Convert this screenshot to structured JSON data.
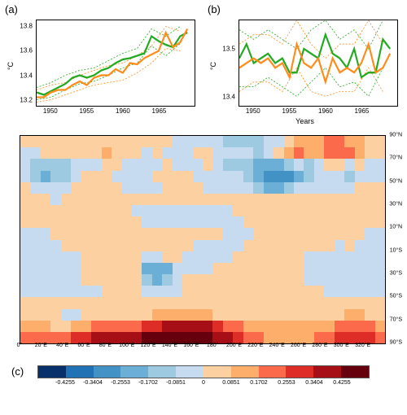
{
  "panel_a": {
    "label": "(a)",
    "ylabel": "°C",
    "ylim": [
      13.15,
      13.85
    ],
    "yticks": [
      13.2,
      13.4,
      13.6,
      13.8
    ],
    "xlim": [
      1948,
      1970
    ],
    "xticks": [
      1950,
      1955,
      1960,
      1965
    ],
    "series_green": {
      "color": "#22aa22",
      "width": 2.5,
      "x": [
        1948,
        1949,
        1950,
        1951,
        1952,
        1953,
        1954,
        1955,
        1956,
        1957,
        1958,
        1959,
        1960,
        1961,
        1962,
        1963,
        1964,
        1965,
        1966,
        1967,
        1968,
        1969
      ],
      "y": [
        13.26,
        13.24,
        13.27,
        13.3,
        13.33,
        13.38,
        13.4,
        13.38,
        13.4,
        13.44,
        13.46,
        13.5,
        13.53,
        13.54,
        13.56,
        13.58,
        13.72,
        13.68,
        13.65,
        13.63,
        13.72,
        13.75
      ]
    },
    "series_orange": {
      "color": "#ff8c1a",
      "width": 2.5,
      "x": [
        1948,
        1949,
        1950,
        1951,
        1952,
        1953,
        1954,
        1955,
        1956,
        1957,
        1958,
        1959,
        1960,
        1961,
        1962,
        1963,
        1964,
        1965,
        1966,
        1967,
        1968,
        1969
      ],
      "y": [
        13.22,
        13.22,
        13.26,
        13.28,
        13.28,
        13.32,
        13.35,
        13.32,
        13.38,
        13.4,
        13.4,
        13.45,
        13.42,
        13.5,
        13.49,
        13.54,
        13.57,
        13.6,
        13.75,
        13.63,
        13.67,
        13.78
      ]
    },
    "dotted": [
      {
        "color": "#ff8c1a",
        "x": [
          1948,
          1950,
          1952,
          1954,
          1956,
          1958,
          1960,
          1962,
          1964,
          1966,
          1968
        ],
        "y": [
          13.18,
          13.2,
          13.24,
          13.28,
          13.32,
          13.34,
          13.36,
          13.42,
          13.5,
          13.62,
          13.6
        ]
      },
      {
        "color": "#ff8c1a",
        "x": [
          1948,
          1950,
          1952,
          1954,
          1956,
          1958,
          1960,
          1962,
          1964,
          1966,
          1968
        ],
        "y": [
          13.28,
          13.32,
          13.34,
          13.4,
          13.44,
          13.48,
          13.5,
          13.56,
          13.64,
          13.8,
          13.76
        ]
      },
      {
        "color": "#22aa22",
        "x": [
          1948,
          1950,
          1952,
          1954,
          1956,
          1958,
          1960,
          1962,
          1964,
          1966,
          1968
        ],
        "y": [
          13.2,
          13.22,
          13.28,
          13.33,
          13.35,
          13.4,
          13.46,
          13.5,
          13.64,
          13.56,
          13.66
        ]
      },
      {
        "color": "#22aa22",
        "x": [
          1948,
          1950,
          1952,
          1954,
          1956,
          1958,
          1960,
          1962,
          1964,
          1966,
          1968
        ],
        "y": [
          13.3,
          13.34,
          13.4,
          13.44,
          13.46,
          13.52,
          13.58,
          13.62,
          13.78,
          13.72,
          13.8
        ]
      }
    ]
  },
  "panel_b": {
    "label": "(b)",
    "ylabel": "°C",
    "xlabel": "Years",
    "ylim": [
      13.38,
      13.56
    ],
    "yticks": [
      13.4,
      13.5
    ],
    "xlim": [
      1948,
      1970
    ],
    "xticks": [
      1950,
      1955,
      1960,
      1965
    ],
    "series_green": {
      "color": "#22aa22",
      "width": 2.5,
      "x": [
        1948,
        1949,
        1950,
        1951,
        1952,
        1953,
        1954,
        1955,
        1956,
        1957,
        1958,
        1959,
        1960,
        1961,
        1962,
        1963,
        1964,
        1965,
        1966,
        1967,
        1968,
        1969
      ],
      "y": [
        13.48,
        13.51,
        13.47,
        13.48,
        13.49,
        13.47,
        13.48,
        13.45,
        13.45,
        13.5,
        13.49,
        13.48,
        13.53,
        13.49,
        13.48,
        13.46,
        13.5,
        13.44,
        13.45,
        13.45,
        13.52,
        13.5
      ]
    },
    "series_orange": {
      "color": "#ff8c1a",
      "width": 2.5,
      "x": [
        1948,
        1949,
        1950,
        1951,
        1952,
        1953,
        1954,
        1955,
        1956,
        1957,
        1958,
        1959,
        1960,
        1961,
        1962,
        1963,
        1964,
        1965,
        1966,
        1967,
        1968,
        1969
      ],
      "y": [
        13.46,
        13.47,
        13.48,
        13.47,
        13.48,
        13.46,
        13.47,
        13.44,
        13.51,
        13.47,
        13.46,
        13.48,
        13.43,
        13.48,
        13.45,
        13.46,
        13.45,
        13.47,
        13.51,
        13.45,
        13.46,
        13.49
      ]
    },
    "dotted": [
      {
        "color": "#22aa22",
        "x": [
          1948,
          1950,
          1952,
          1954,
          1956,
          1958,
          1960,
          1962,
          1964,
          1966,
          1968
        ],
        "y": [
          13.42,
          13.42,
          13.44,
          13.42,
          13.4,
          13.43,
          13.46,
          13.42,
          13.43,
          13.4,
          13.46
        ]
      },
      {
        "color": "#22aa22",
        "x": [
          1948,
          1950,
          1952,
          1954,
          1956,
          1958,
          1960,
          1962,
          1964,
          1966,
          1968
        ],
        "y": [
          13.54,
          13.52,
          13.54,
          13.52,
          13.5,
          13.54,
          13.56,
          13.52,
          13.54,
          13.5,
          13.56
        ]
      },
      {
        "color": "#ff8c1a",
        "x": [
          1948,
          1950,
          1952,
          1954,
          1956,
          1958,
          1960,
          1962,
          1964,
          1966,
          1968
        ],
        "y": [
          13.41,
          13.43,
          13.43,
          13.41,
          13.46,
          13.41,
          13.4,
          13.41,
          13.41,
          13.46,
          13.41
        ]
      },
      {
        "color": "#ff8c1a",
        "x": [
          1948,
          1950,
          1952,
          1954,
          1956,
          1958,
          1960,
          1962,
          1964,
          1966,
          1968
        ],
        "y": [
          13.51,
          13.53,
          13.53,
          13.51,
          13.56,
          13.51,
          13.48,
          13.51,
          13.51,
          13.56,
          13.51
        ]
      }
    ]
  },
  "map": {
    "label": "(c)",
    "rows": 18,
    "cols": 36,
    "xticks": [
      "0°",
      "20°E",
      "40°E",
      "60°E",
      "80°E",
      "100°E",
      "120°E",
      "140°E",
      "160°E",
      "180°",
      "200°E",
      "220°E",
      "240°E",
      "260°E",
      "280°E",
      "300°E",
      "320°E",
      ""
    ],
    "yticks": [
      "90°N",
      "70°N",
      "50°N",
      "30°N",
      "10°N",
      "10°S",
      "30°S",
      "50°S",
      "70°S",
      "90°S"
    ],
    "colorbar_colors": [
      "#08306b",
      "#2171b5",
      "#4292c6",
      "#6baed6",
      "#9ecae1",
      "#c6dbef",
      "#fdd0a2",
      "#fdae6b",
      "#fb6a4a",
      "#de2d26",
      "#a50f15",
      "#67000d"
    ],
    "colorbar_ticks": [
      "-0.4255",
      "-0.3404",
      "-0.2553",
      "-0.1702",
      "-0.0851",
      "0",
      "0.0851",
      "0.1702",
      "0.2553",
      "0.3404",
      "0.4255"
    ],
    "grid": [
      [
        6,
        6,
        6,
        6,
        6,
        6,
        6,
        6,
        6,
        6,
        6,
        6,
        6,
        6,
        6,
        5,
        5,
        5,
        5,
        5,
        4,
        4,
        4,
        4,
        5,
        5,
        6,
        7,
        7,
        7,
        8,
        8,
        7,
        7,
        6,
        6
      ],
      [
        5,
        5,
        6,
        6,
        6,
        6,
        6,
        6,
        7,
        6,
        6,
        6,
        5,
        6,
        5,
        5,
        5,
        6,
        6,
        5,
        5,
        5,
        5,
        4,
        5,
        6,
        7,
        8,
        7,
        7,
        8,
        8,
        8,
        7,
        6,
        6
      ],
      [
        5,
        4,
        4,
        4,
        4,
        5,
        5,
        5,
        6,
        6,
        5,
        5,
        5,
        5,
        6,
        5,
        5,
        5,
        6,
        5,
        4,
        4,
        4,
        3,
        3,
        3,
        4,
        5,
        4,
        5,
        6,
        6,
        5,
        6,
        5,
        5
      ],
      [
        5,
        4,
        3,
        4,
        4,
        5,
        6,
        6,
        6,
        5,
        5,
        5,
        5,
        6,
        6,
        6,
        6,
        5,
        5,
        5,
        5,
        5,
        4,
        3,
        2,
        2,
        2,
        3,
        4,
        5,
        5,
        5,
        4,
        5,
        5,
        5
      ],
      [
        6,
        5,
        5,
        5,
        5,
        6,
        6,
        6,
        6,
        6,
        5,
        5,
        5,
        5,
        6,
        6,
        6,
        6,
        5,
        5,
        5,
        5,
        5,
        4,
        3,
        3,
        4,
        5,
        5,
        5,
        5,
        5,
        5,
        6,
        6,
        6
      ],
      [
        6,
        6,
        6,
        5,
        6,
        6,
        6,
        6,
        6,
        6,
        6,
        6,
        6,
        6,
        6,
        6,
        6,
        6,
        6,
        6,
        6,
        6,
        6,
        6,
        6,
        6,
        6,
        6,
        6,
        6,
        6,
        6,
        6,
        6,
        6,
        6
      ],
      [
        6,
        6,
        6,
        6,
        6,
        6,
        6,
        6,
        6,
        6,
        6,
        5,
        5,
        5,
        5,
        5,
        5,
        5,
        5,
        5,
        5,
        6,
        6,
        6,
        6,
        6,
        6,
        6,
        6,
        6,
        6,
        6,
        6,
        6,
        6,
        6
      ],
      [
        6,
        6,
        6,
        6,
        6,
        6,
        6,
        6,
        6,
        6,
        6,
        6,
        5,
        5,
        5,
        5,
        5,
        5,
        5,
        5,
        5,
        5,
        6,
        6,
        6,
        6,
        6,
        6,
        6,
        6,
        6,
        6,
        6,
        6,
        6,
        6
      ],
      [
        5,
        5,
        5,
        6,
        6,
        6,
        6,
        6,
        6,
        6,
        6,
        6,
        6,
        6,
        6,
        6,
        6,
        6,
        6,
        6,
        5,
        5,
        5,
        6,
        6,
        6,
        6,
        6,
        6,
        6,
        6,
        6,
        6,
        6,
        5,
        5
      ],
      [
        5,
        5,
        5,
        5,
        6,
        6,
        6,
        6,
        6,
        6,
        6,
        6,
        6,
        6,
        6,
        6,
        6,
        5,
        5,
        5,
        5,
        5,
        6,
        6,
        6,
        6,
        6,
        6,
        6,
        6,
        6,
        5,
        6,
        5,
        5,
        5
      ],
      [
        5,
        5,
        5,
        5,
        5,
        5,
        6,
        6,
        6,
        6,
        6,
        6,
        5,
        5,
        6,
        6,
        5,
        5,
        5,
        5,
        5,
        6,
        6,
        6,
        6,
        6,
        6,
        6,
        5,
        5,
        5,
        5,
        5,
        5,
        5,
        5
      ],
      [
        5,
        5,
        5,
        5,
        5,
        5,
        6,
        6,
        6,
        6,
        6,
        6,
        3,
        3,
        3,
        5,
        5,
        5,
        5,
        6,
        6,
        6,
        6,
        6,
        6,
        6,
        6,
        6,
        5,
        5,
        5,
        5,
        5,
        5,
        5,
        5
      ],
      [
        5,
        5,
        5,
        5,
        5,
        5,
        6,
        6,
        6,
        6,
        6,
        6,
        4,
        3,
        4,
        5,
        6,
        6,
        6,
        6,
        6,
        6,
        6,
        6,
        6,
        6,
        6,
        6,
        5,
        5,
        5,
        5,
        5,
        5,
        5,
        5
      ],
      [
        5,
        5,
        5,
        5,
        5,
        5,
        5,
        5,
        6,
        6,
        6,
        6,
        5,
        5,
        5,
        5,
        6,
        6,
        6,
        6,
        6,
        6,
        6,
        6,
        6,
        6,
        6,
        6,
        6,
        6,
        5,
        5,
        5,
        5,
        5,
        5
      ],
      [
        6,
        6,
        6,
        6,
        6,
        6,
        6,
        6,
        6,
        6,
        6,
        6,
        6,
        6,
        6,
        6,
        6,
        6,
        6,
        6,
        6,
        6,
        6,
        6,
        6,
        6,
        6,
        6,
        6,
        6,
        6,
        6,
        6,
        6,
        6,
        6
      ],
      [
        6,
        6,
        6,
        6,
        5,
        5,
        6,
        6,
        6,
        6,
        6,
        6,
        6,
        7,
        7,
        7,
        7,
        7,
        7,
        6,
        6,
        6,
        6,
        6,
        6,
        6,
        6,
        6,
        6,
        6,
        6,
        6,
        7,
        7,
        6,
        6
      ],
      [
        7,
        7,
        7,
        6,
        6,
        7,
        7,
        8,
        8,
        8,
        8,
        8,
        9,
        9,
        10,
        10,
        10,
        10,
        10,
        9,
        8,
        8,
        7,
        7,
        7,
        7,
        7,
        7,
        7,
        7,
        7,
        8,
        8,
        8,
        8,
        7
      ],
      [
        8,
        8,
        8,
        8,
        8,
        9,
        9,
        10,
        10,
        10,
        10,
        10,
        11,
        11,
        11,
        11,
        11,
        11,
        11,
        10,
        10,
        9,
        8,
        8,
        7,
        7,
        7,
        7,
        7,
        8,
        8,
        9,
        9,
        9,
        9,
        8
      ]
    ]
  }
}
